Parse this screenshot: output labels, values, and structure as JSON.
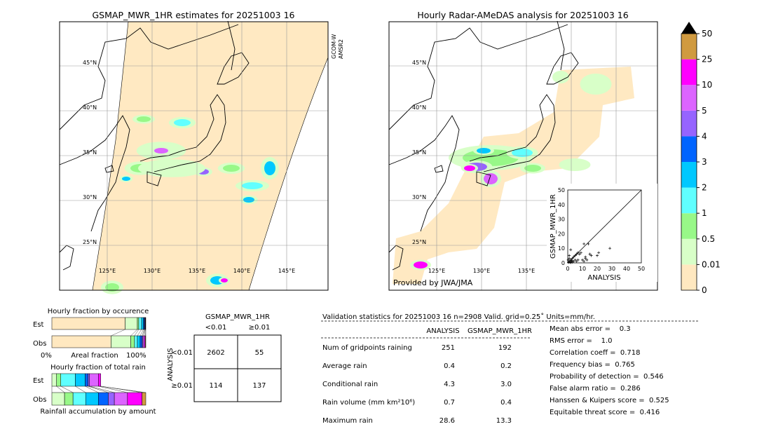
{
  "left_map": {
    "title": "GSMAP_MWR_1HR estimates for 20251003 16",
    "sensor_label_1": "GCOM-W",
    "sensor_label_2": "AMSR2"
  },
  "right_map": {
    "title": "Hourly Radar-AMeDAS analysis for 20251003 16",
    "credit": "Provided by JWA/JMA"
  },
  "lat_labels": [
    "45°N",
    "40°N",
    "35°N",
    "30°N",
    "25°N"
  ],
  "lon_labels_left": [
    "125°E",
    "130°E",
    "135°E",
    "140°E",
    "145°E"
  ],
  "lon_labels_right": [
    "125°E",
    "130°E",
    "135°E"
  ],
  "colorbar": {
    "ticks": [
      "0",
      "0.01",
      "0.5",
      "1",
      "2",
      "3",
      "4",
      "5",
      "10",
      "25",
      "50"
    ],
    "colors": [
      "#ffe8c0",
      "#d8ffc8",
      "#98f888",
      "#60ffff",
      "#00c8ff",
      "#0064ff",
      "#9664ff",
      "#dc64ff",
      "#ff00ff",
      "#d09a40"
    ],
    "over_color": "#000000"
  },
  "chart_data": [
    {
      "type": "scatter",
      "xlabel": "ANALYSIS",
      "ylabel": "GSMAP_MWR_1HR",
      "xlim": [
        0,
        50
      ],
      "ylim": [
        0,
        50
      ],
      "ticks": [
        "0",
        "10",
        "20",
        "30",
        "40",
        "50"
      ],
      "diagonal": true,
      "points": [
        [
          0.5,
          0.3
        ],
        [
          1,
          1
        ],
        [
          1.5,
          0.5
        ],
        [
          2,
          2
        ],
        [
          2.5,
          1
        ],
        [
          3,
          0.5
        ],
        [
          3,
          3
        ],
        [
          4,
          1
        ],
        [
          4,
          4
        ],
        [
          5,
          2
        ],
        [
          5,
          5
        ],
        [
          6,
          1
        ],
        [
          6,
          6
        ],
        [
          7,
          2
        ],
        [
          7,
          7
        ],
        [
          8,
          6
        ],
        [
          9,
          7
        ],
        [
          10,
          2
        ],
        [
          11,
          1
        ],
        [
          11,
          13
        ],
        [
          12,
          3
        ],
        [
          12,
          4
        ],
        [
          13,
          2
        ],
        [
          14,
          13
        ],
        [
          15,
          6
        ],
        [
          16,
          5
        ],
        [
          20,
          5
        ],
        [
          21,
          7
        ],
        [
          28.6,
          10
        ],
        [
          1,
          5
        ],
        [
          2,
          9
        ],
        [
          1,
          3
        ],
        [
          0.3,
          2
        ],
        [
          2,
          0.2
        ],
        [
          3,
          1.5
        ]
      ]
    },
    {
      "type": "bar",
      "title": "Hourly fraction by occurence",
      "xlabel": "Areal fraction",
      "tick_left": "0%",
      "tick_right": "100%",
      "categories": [
        "Est",
        "Obs"
      ],
      "segment_percent": {
        "Est": [
          78,
          13,
          1.5,
          3,
          2,
          1,
          0.5,
          0.5,
          0.3,
          0.2
        ],
        "Obs": [
          63,
          21,
          4,
          3,
          3,
          2,
          1,
          1.5,
          1,
          0.5
        ]
      }
    },
    {
      "type": "bar",
      "title": "Hourly fraction of total rain",
      "xlabel": "Rainfall accumulation by amount",
      "categories": [
        "Est",
        "Obs"
      ],
      "segment_percent_of_obs_total": {
        "Est": [
          0,
          5,
          4.5,
          15.5,
          10.5,
          3,
          1.5,
          9.5,
          2.5,
          0
        ],
        "Obs": [
          0,
          13.5,
          9,
          13.5,
          13.5,
          10.5,
          6.5,
          14,
          15.5,
          4
        ]
      }
    },
    {
      "type": "table",
      "title": "GSMAP_MWR_1HR",
      "col_headers": [
        "<0.01",
        "≥0.01"
      ],
      "row_label": "ANALYSIS",
      "row_headers": [
        "<0.01",
        "≥0.01"
      ],
      "cells": [
        [
          "2602",
          "55"
        ],
        [
          "114",
          "137"
        ]
      ]
    }
  ],
  "stats": {
    "header": "Validation statistics for 20251003 16  n=2908 Valid. grid=0.25˚ Units=mm/hr.",
    "col_analysis": "ANALYSIS",
    "col_gsmap": "GSMAP_MWR_1HR",
    "rows": [
      {
        "label": "Num of gridpoints raining",
        "analysis": "251",
        "gsmap": "192"
      },
      {
        "label": "Average rain",
        "analysis": "0.4",
        "gsmap": "0.2"
      },
      {
        "label": "Conditional rain",
        "analysis": "4.3",
        "gsmap": "3.0"
      },
      {
        "label": "Rain volume (mm km²10⁶)",
        "analysis": "0.7",
        "gsmap": "0.4"
      },
      {
        "label": "Maximum rain",
        "analysis": "28.6",
        "gsmap": "13.3"
      }
    ],
    "scores": [
      "Mean abs error =    0.3",
      "RMS error =    1.0",
      "Correlation coeff =  0.718",
      "Frequency bias =  0.765",
      "Probability of detection =  0.546",
      "False alarm ratio =  0.286",
      "Hanssen & Kuipers score =  0.525",
      "Equitable threat score =  0.416"
    ]
  }
}
